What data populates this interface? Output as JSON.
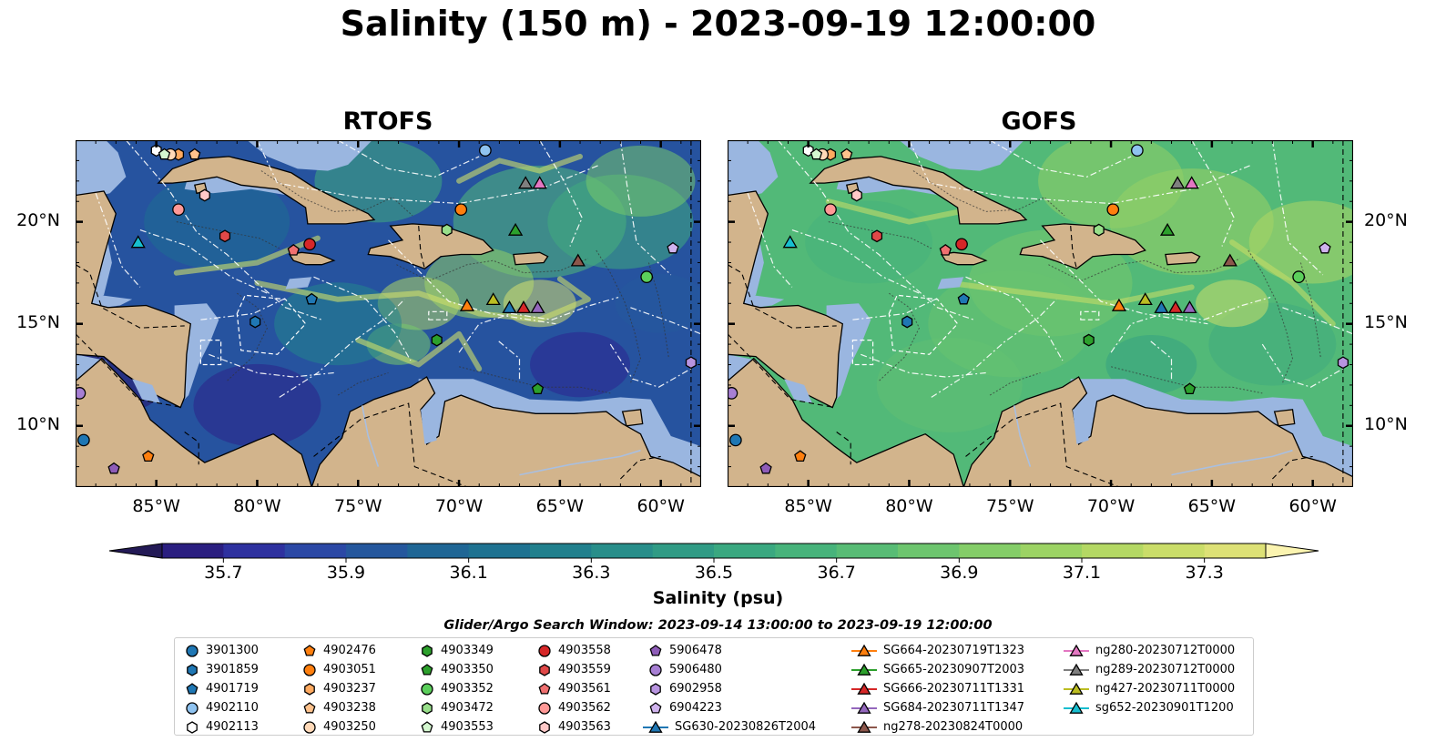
{
  "title": "Salinity (150 m) - 2023-09-19 12:00:00",
  "panels": [
    {
      "title": "RTOFS",
      "style": "rtofs"
    },
    {
      "title": "GOFS",
      "style": "gofs"
    }
  ],
  "map_extent": {
    "lon_min": -89,
    "lon_max": -58,
    "lat_min": 7,
    "lat_max": 24
  },
  "lon_ticks": [
    {
      "value": -85,
      "label": "85°W"
    },
    {
      "value": -80,
      "label": "80°W"
    },
    {
      "value": -75,
      "label": "75°W"
    },
    {
      "value": -70,
      "label": "70°W"
    },
    {
      "value": -65,
      "label": "65°W"
    },
    {
      "value": -60,
      "label": "60°W"
    }
  ],
  "lat_ticks": [
    {
      "value": 20,
      "label": "20°N"
    },
    {
      "value": 15,
      "label": "15°N"
    },
    {
      "value": 10,
      "label": "10°N"
    }
  ],
  "colorbar": {
    "label": "Salinity (psu)",
    "min": 35.6,
    "max": 37.4,
    "step": 0.1,
    "extend": "both",
    "ticks": [
      "35.7",
      "35.9",
      "36.1",
      "36.3",
      "36.5",
      "36.7",
      "36.9",
      "37.1",
      "37.3"
    ],
    "colors": [
      "#27166c",
      "#2e2a9c",
      "#2c46a6",
      "#24599c",
      "#1d6a93",
      "#1e788f",
      "#258a8b",
      "#2f9a85",
      "#3ba97f",
      "#4bb67a",
      "#62c172",
      "#7ccb69",
      "#9ad264",
      "#b6d864",
      "#d0df6b",
      "#e6e37e"
    ],
    "under_color": "#231a56",
    "over_color": "#fbf4b0"
  },
  "colors": {
    "land": "#d2b48c",
    "shelf": "#9ab6e0",
    "border": "#000000"
  },
  "search_window": "Glider/Argo Search Window: 2023-09-14 13:00:00 to 2023-09-19 12:00:00",
  "platforms": [
    {
      "id": "3901300",
      "kind": "argo",
      "marker": "circle",
      "color": "#1f77b4",
      "lon": -88.6,
      "lat": 9.3
    },
    {
      "id": "3901859",
      "kind": "argo",
      "marker": "hexagon",
      "color": "#1f77b4",
      "lon": -80.1,
      "lat": 15.1
    },
    {
      "id": "4901719",
      "kind": "argo",
      "marker": "pentagon",
      "color": "#1f77b4",
      "lon": -77.3,
      "lat": 16.2
    },
    {
      "id": "4902110",
      "kind": "argo",
      "marker": "circle",
      "color": "#8fc3f0",
      "lon": -68.7,
      "lat": 23.5
    },
    {
      "id": "4902113",
      "kind": "argo",
      "marker": "hexagon",
      "color": "#ffffff",
      "lon": -85.0,
      "lat": 23.5
    },
    {
      "id": "4903051",
      "kind": "argo",
      "marker": "circle",
      "color": "#ff7f0e",
      "lon": -69.9,
      "lat": 20.6
    },
    {
      "id": "4902476",
      "kind": "argo",
      "marker": "pentagon",
      "color": "#ff7f0e",
      "lon": -85.4,
      "lat": 8.5
    },
    {
      "id": "4903237",
      "kind": "argo",
      "marker": "hexagon",
      "color": "#ffaa60",
      "lon": -83.9,
      "lat": 23.3
    },
    {
      "id": "4903238",
      "kind": "argo",
      "marker": "pentagon",
      "color": "#ffc28c",
      "lon": -83.1,
      "lat": 23.3
    },
    {
      "id": "4903250",
      "kind": "argo",
      "marker": "circle",
      "color": "#ffd9b8",
      "lon": -84.3,
      "lat": 23.3
    },
    {
      "id": "4903349",
      "kind": "argo",
      "marker": "hexagon",
      "color": "#2ca02c",
      "lon": -71.1,
      "lat": 14.2
    },
    {
      "id": "4903350",
      "kind": "argo",
      "marker": "pentagon",
      "color": "#2ca02c",
      "lon": -66.1,
      "lat": 11.8
    },
    {
      "id": "4903352",
      "kind": "argo",
      "marker": "circle",
      "color": "#5bcf5b",
      "lon": -60.7,
      "lat": 17.3
    },
    {
      "id": "4903472",
      "kind": "argo",
      "marker": "hexagon",
      "color": "#98df8a",
      "lon": -70.6,
      "lat": 19.6
    },
    {
      "id": "4903553",
      "kind": "argo",
      "marker": "pentagon",
      "color": "#d4f7cf",
      "lon": -84.6,
      "lat": 23.3
    },
    {
      "id": "4903558",
      "kind": "argo",
      "marker": "circle",
      "color": "#d62728",
      "lon": -77.4,
      "lat": 18.9
    },
    {
      "id": "4903559",
      "kind": "argo",
      "marker": "hexagon",
      "color": "#e04848",
      "lon": -81.6,
      "lat": 19.3
    },
    {
      "id": "4903561",
      "kind": "argo",
      "marker": "pentagon",
      "color": "#f07070",
      "lon": -78.2,
      "lat": 18.6
    },
    {
      "id": "4903562",
      "kind": "argo",
      "marker": "circle",
      "color": "#ff9896",
      "lon": -83.9,
      "lat": 20.6
    },
    {
      "id": "4903563",
      "kind": "argo",
      "marker": "hexagon",
      "color": "#ffc9c8",
      "lon": -82.6,
      "lat": 21.3
    },
    {
      "id": "5906478",
      "kind": "argo",
      "marker": "pentagon",
      "color": "#8e5cb8",
      "lon": -87.1,
      "lat": 7.9
    },
    {
      "id": "5906480",
      "kind": "argo",
      "marker": "circle",
      "color": "#a77fd4",
      "lon": -88.8,
      "lat": 11.6
    },
    {
      "id": "6902958",
      "kind": "argo",
      "marker": "hexagon",
      "color": "#b894e0",
      "lon": -58.5,
      "lat": 13.1
    },
    {
      "id": "6904223",
      "kind": "argo",
      "marker": "pentagon",
      "color": "#d0b3ee",
      "lon": -59.4,
      "lat": 18.7
    },
    {
      "id": "SG630-20230826T2004",
      "kind": "glider",
      "marker": "triangle",
      "color": "#1f77b4",
      "lon": -67.5,
      "lat": 15.8
    },
    {
      "id": "SG664-20230719T1323",
      "kind": "glider",
      "marker": "triangle",
      "color": "#ff7f0e",
      "lon": -69.6,
      "lat": 15.9
    },
    {
      "id": "SG665-20230907T2003",
      "kind": "glider",
      "marker": "triangle",
      "color": "#2ca02c",
      "lon": -67.2,
      "lat": 19.6
    },
    {
      "id": "SG666-20230711T1331",
      "kind": "glider",
      "marker": "triangle",
      "color": "#d62728",
      "lon": -66.8,
      "lat": 15.8
    },
    {
      "id": "SG684-20230711T1347",
      "kind": "glider",
      "marker": "triangle",
      "color": "#9467bd",
      "lon": -66.1,
      "lat": 15.8
    },
    {
      "id": "ng278-20230824T0000",
      "kind": "glider",
      "marker": "triangle",
      "color": "#8c564b",
      "lon": -64.1,
      "lat": 18.1
    },
    {
      "id": "ng280-20230712T0000",
      "kind": "glider",
      "marker": "triangle",
      "color": "#e377c2",
      "lon": -66.0,
      "lat": 21.9
    },
    {
      "id": "ng289-20230712T0000",
      "kind": "glider",
      "marker": "triangle",
      "color": "#7f7f7f",
      "lon": -66.7,
      "lat": 21.9
    },
    {
      "id": "ng427-20230711T0000",
      "kind": "glider",
      "marker": "triangle",
      "color": "#bcbd22",
      "lon": -68.3,
      "lat": 16.2
    },
    {
      "id": "sg652-20230901T1200",
      "kind": "glider",
      "marker": "triangle",
      "color": "#17becf",
      "lon": -85.9,
      "lat": 19.0
    }
  ]
}
